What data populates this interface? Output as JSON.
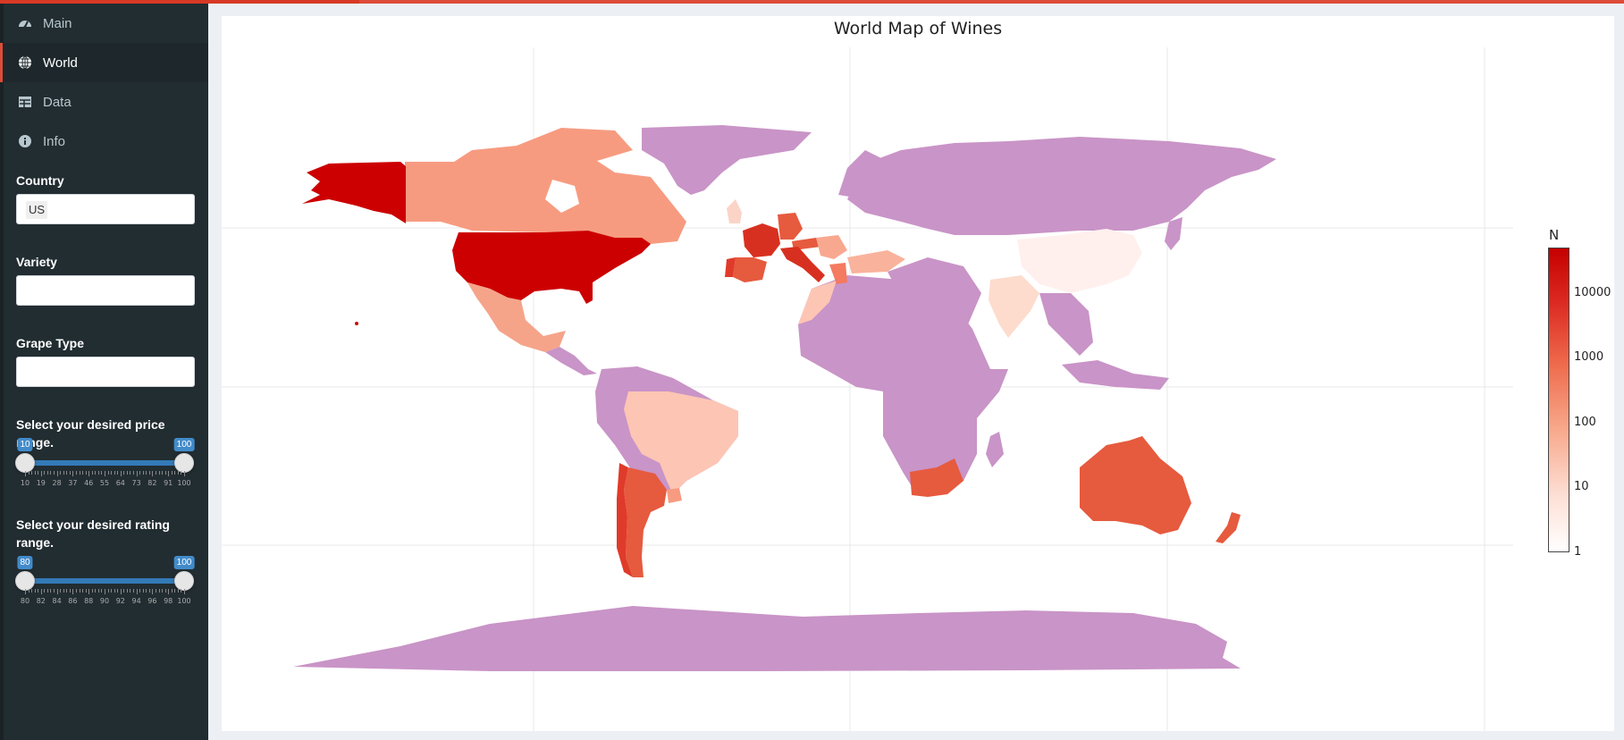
{
  "sidebar": {
    "menu": [
      {
        "label": "Main",
        "icon": "dashboard-icon"
      },
      {
        "label": "World",
        "icon": "globe-icon"
      },
      {
        "label": "Data",
        "icon": "table-icon"
      },
      {
        "label": "Info",
        "icon": "info-icon"
      }
    ],
    "country": {
      "label": "Country",
      "value": "US"
    },
    "variety": {
      "label": "Variety",
      "value": ""
    },
    "grape": {
      "label": "Grape Type",
      "value": ""
    },
    "price": {
      "label": "Select your desired price range.",
      "min": 10,
      "max": 100,
      "from": 10,
      "to": 100,
      "from_label": "10",
      "to_label": "100",
      "ticks": [
        "10",
        "19",
        "28",
        "37",
        "46",
        "55",
        "64",
        "73",
        "82",
        "91",
        "100"
      ]
    },
    "rating": {
      "label": "Select your desired rating range.",
      "min": 80,
      "max": 100,
      "from": 80,
      "to": 100,
      "from_label": "80",
      "to_label": "100",
      "ticks": [
        "80",
        "82",
        "84",
        "86",
        "88",
        "90",
        "92",
        "94",
        "96",
        "98",
        "100"
      ]
    }
  },
  "map": {
    "title": "World Map of Wines",
    "colorbar": {
      "title": "N",
      "ticks": [
        "10000",
        "1000",
        "100",
        "10",
        "1"
      ],
      "scale": "log",
      "min": 1,
      "max": 50000
    },
    "colors": {
      "no_data": "#c994c7",
      "high": "#c60000",
      "low": "#fff0ee"
    },
    "countries": [
      {
        "name": "US",
        "n": 54000
      },
      {
        "name": "Alaska (US)",
        "n": 54000
      },
      {
        "name": "France",
        "n": 17000
      },
      {
        "name": "Italy",
        "n": 16000
      },
      {
        "name": "Spain",
        "n": 5000
      },
      {
        "name": "Portugal",
        "n": 4000
      },
      {
        "name": "Chile",
        "n": 4000
      },
      {
        "name": "Argentina",
        "n": 3500
      },
      {
        "name": "Australia",
        "n": 2000
      },
      {
        "name": "Austria",
        "n": 2500
      },
      {
        "name": "Germany",
        "n": 2000
      },
      {
        "name": "New Zealand",
        "n": 1200
      },
      {
        "name": "South Africa",
        "n": 1000
      },
      {
        "name": "Canada",
        "n": 200
      },
      {
        "name": "Greece",
        "n": 400
      },
      {
        "name": "Mexico",
        "n": 70
      },
      {
        "name": "Turkey",
        "n": 80
      },
      {
        "name": "Hungary",
        "n": 120
      },
      {
        "name": "Brazil",
        "n": 40
      },
      {
        "name": "Uruguay",
        "n": 90
      },
      {
        "name": "Morocco",
        "n": 20
      },
      {
        "name": "UK",
        "n": 30
      },
      {
        "name": "India",
        "n": 7
      },
      {
        "name": "China",
        "n": 1
      }
    ]
  }
}
